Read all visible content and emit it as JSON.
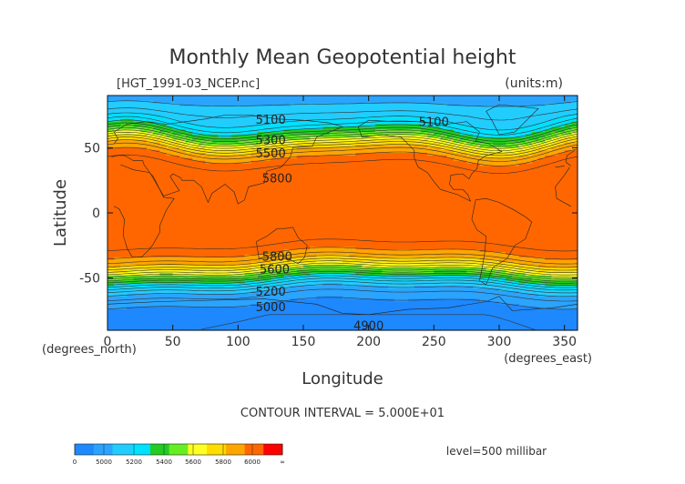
{
  "chart_data": {
    "type": "heatmap",
    "title": "Monthly Mean Geopotential height",
    "file_label": "[HGT_1991-03_NCEP.nc]",
    "units": "(units:m)",
    "xlabel": "Longitude",
    "ylabel": "Latitude",
    "x_unit_label": "(degrees_east)",
    "y_unit_label": "(degrees_north)",
    "xlim": [
      0,
      360
    ],
    "ylim": [
      -90,
      90
    ],
    "x_ticks": [
      0,
      50,
      100,
      150,
      200,
      250,
      300,
      350
    ],
    "y_ticks": [
      -50,
      0,
      50
    ],
    "contour_interval_text": "CONTOUR INTERVAL = 5.000E+01",
    "level_text": "level=500 millibar",
    "contour_labels": [
      {
        "text": "5100",
        "lon": 125,
        "lat": 72
      },
      {
        "text": "5100",
        "lon": 250,
        "lat": 70
      },
      {
        "text": "5300",
        "lon": 125,
        "lat": 56
      },
      {
        "text": "5500",
        "lon": 125,
        "lat": 46
      },
      {
        "text": "5800",
        "lon": 130,
        "lat": 27
      },
      {
        "text": "5800",
        "lon": 130,
        "lat": -33
      },
      {
        "text": "5600",
        "lon": 128,
        "lat": -43
      },
      {
        "text": "5200",
        "lon": 125,
        "lat": -60
      },
      {
        "text": "5000",
        "lon": 125,
        "lat": -72
      },
      {
        "text": "4900",
        "lon": 200,
        "lat": -86
      }
    ],
    "colorbar": {
      "boundaries": [
        0,
        5000,
        5200,
        5400,
        5600,
        5800,
        6000,
        "∞"
      ],
      "colors": [
        "#1e88ff",
        "#2aa4ff",
        "#22ccff",
        "#00e0ff",
        "#22cc22",
        "#66ee22",
        "#ffff22",
        "#ffdd00",
        "#ffa500",
        "#ff6600",
        "#ff0000"
      ]
    }
  }
}
